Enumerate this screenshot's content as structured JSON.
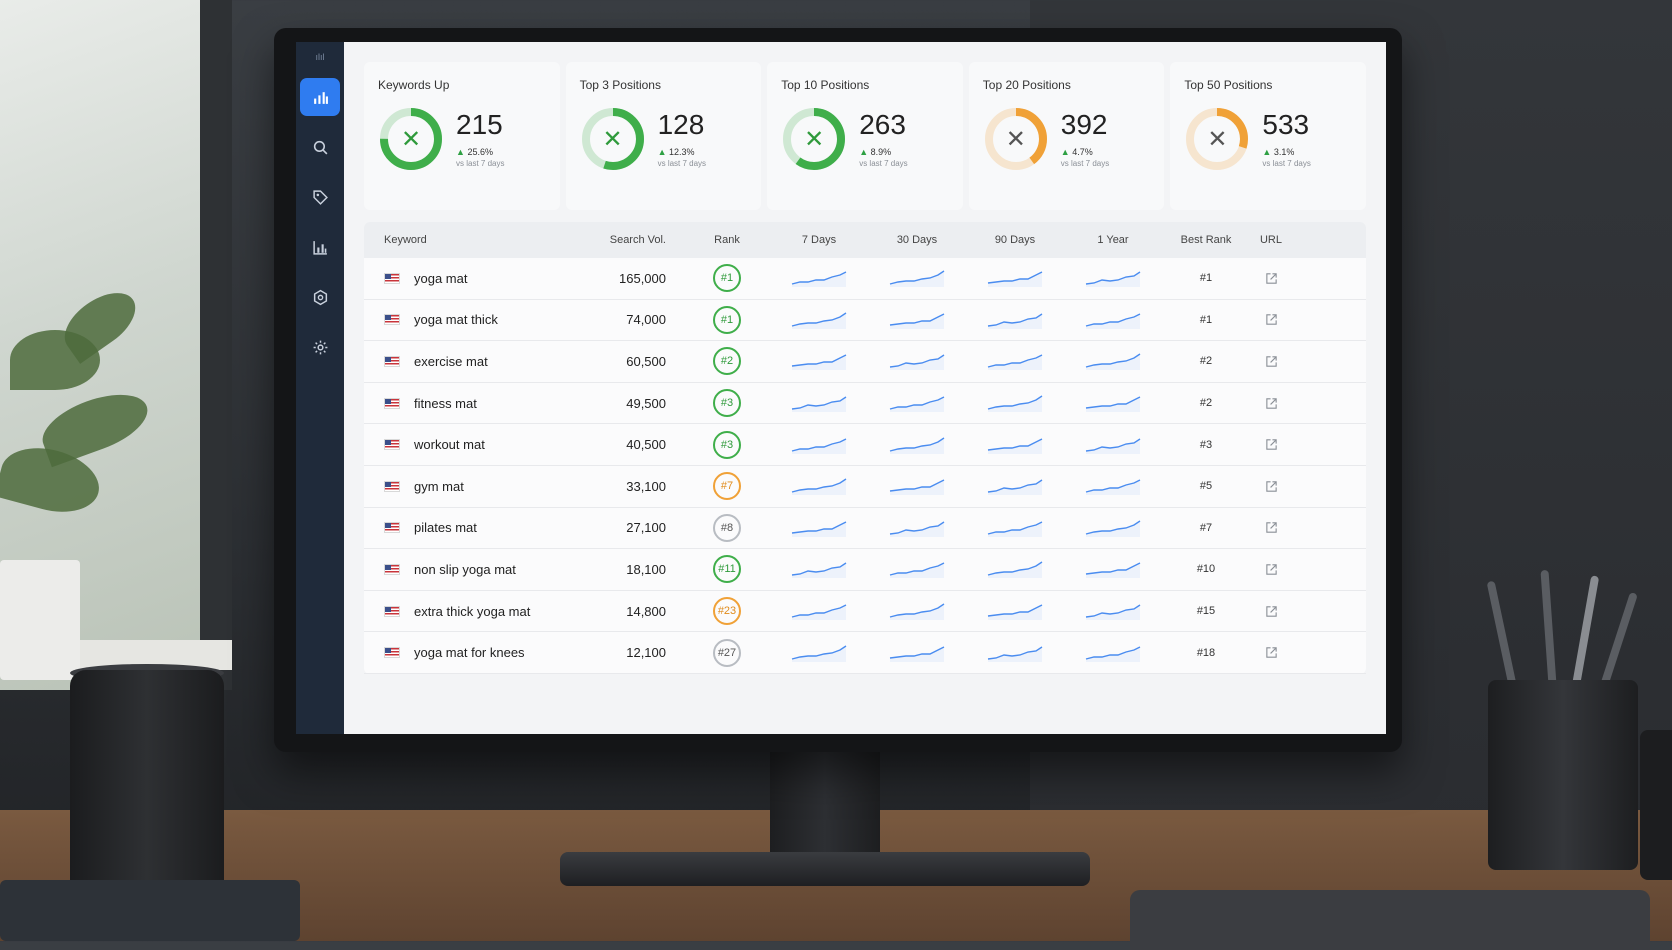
{
  "sidebar": {
    "logo": "ılıl",
    "items": [
      {
        "name": "dashboard",
        "icon": "bar-chart-icon",
        "active": true
      },
      {
        "name": "search",
        "icon": "search-icon",
        "active": false
      },
      {
        "name": "tags",
        "icon": "tag-icon",
        "active": false
      },
      {
        "name": "reports",
        "icon": "column-chart-icon",
        "active": false
      },
      {
        "name": "integrations",
        "icon": "hexagon-icon",
        "active": false
      },
      {
        "name": "settings",
        "icon": "gear-icon",
        "active": false
      }
    ]
  },
  "stats": [
    {
      "title": "Keywords Up",
      "value": "215",
      "change": "25.6%",
      "sub": "vs last 7 days",
      "color": "#3fae4a",
      "fill": 0.75
    },
    {
      "title": "Top 3 Positions",
      "value": "128",
      "change": "12.3%",
      "sub": "vs last 7 days",
      "color": "#3fae4a",
      "fill": 0.55
    },
    {
      "title": "Top 10 Positions",
      "value": "263",
      "change": "8.9%",
      "sub": "vs last 7 days",
      "color": "#3fae4a",
      "fill": 0.6
    },
    {
      "title": "Top 20 Positions",
      "value": "392",
      "change": "4.7%",
      "sub": "vs last 7 days",
      "color": "#f0a137",
      "fill": 0.4
    },
    {
      "title": "Top 50 Positions",
      "value": "533",
      "change": "3.1%",
      "sub": "vs last 7 days",
      "color": "#f0a137",
      "fill": 0.3
    }
  ],
  "table": {
    "headers": {
      "keyword": "Keyword",
      "search_vol": "Search Vol.",
      "rank": "Rank",
      "d7": "7 Days",
      "d30": "30 Days",
      "d90": "90 Days",
      "y1": "1 Year",
      "best_rank": "Best Rank",
      "url": "URL"
    },
    "rows": [
      {
        "keyword": "yoga mat",
        "vol": "165,000",
        "rank": "#1",
        "rank_color": "green",
        "best": "#1"
      },
      {
        "keyword": "yoga mat thick",
        "vol": "74,000",
        "rank": "#1",
        "rank_color": "green",
        "best": "#1"
      },
      {
        "keyword": "exercise mat",
        "vol": "60,500",
        "rank": "#2",
        "rank_color": "green",
        "best": "#2"
      },
      {
        "keyword": "fitness mat",
        "vol": "49,500",
        "rank": "#3",
        "rank_color": "green",
        "best": "#2"
      },
      {
        "keyword": "workout mat",
        "vol": "40,500",
        "rank": "#3",
        "rank_color": "green",
        "best": "#3"
      },
      {
        "keyword": "gym mat",
        "vol": "33,100",
        "rank": "#7",
        "rank_color": "orange",
        "best": "#5"
      },
      {
        "keyword": "pilates mat",
        "vol": "27,100",
        "rank": "#8",
        "rank_color": "gray",
        "best": "#7"
      },
      {
        "keyword": "non slip yoga mat",
        "vol": "18,100",
        "rank": "#11",
        "rank_color": "green",
        "best": "#10"
      },
      {
        "keyword": "extra thick yoga mat",
        "vol": "14,800",
        "rank": "#23",
        "rank_color": "orange",
        "best": "#15"
      },
      {
        "keyword": "yoga mat for knees",
        "vol": "12,100",
        "rank": "#27",
        "rank_color": "gray",
        "best": "#18"
      }
    ]
  },
  "colors": {
    "accent": "#2f7cf0",
    "sidebar": "#1f2a3a",
    "sparkline": "#4a8cf0",
    "up": "#2ea043"
  }
}
